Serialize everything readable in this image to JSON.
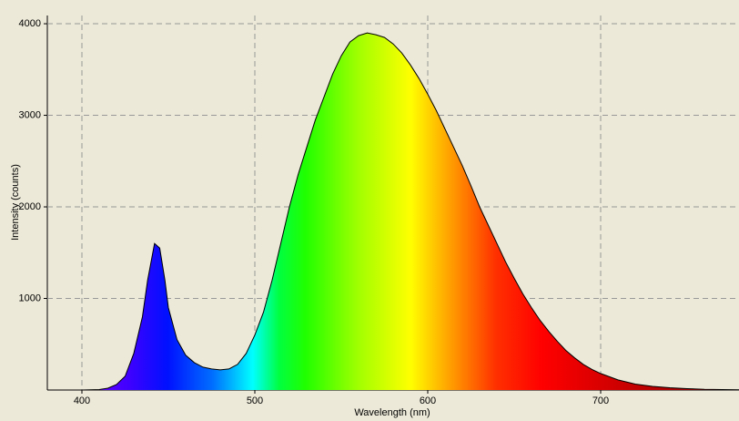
{
  "chart_data": {
    "type": "area",
    "x_label": "Wavelength (nm)",
    "y_label": "Intensity (counts)",
    "x": [
      380,
      400,
      410,
      415,
      420,
      425,
      430,
      435,
      438,
      442,
      445,
      448,
      450,
      455,
      460,
      465,
      470,
      475,
      480,
      485,
      490,
      495,
      500,
      505,
      510,
      515,
      520,
      525,
      530,
      535,
      540,
      545,
      550,
      555,
      560,
      565,
      570,
      575,
      580,
      585,
      590,
      595,
      600,
      605,
      610,
      615,
      620,
      625,
      630,
      635,
      640,
      645,
      650,
      655,
      660,
      665,
      670,
      675,
      680,
      685,
      690,
      695,
      700,
      710,
      720,
      730,
      740,
      750,
      760,
      780
    ],
    "values": [
      0,
      0,
      5,
      20,
      60,
      150,
      400,
      800,
      1200,
      1600,
      1550,
      1200,
      900,
      550,
      380,
      300,
      250,
      230,
      220,
      230,
      280,
      400,
      600,
      850,
      1200,
      1600,
      2000,
      2350,
      2650,
      2950,
      3200,
      3450,
      3650,
      3800,
      3870,
      3900,
      3880,
      3850,
      3780,
      3680,
      3550,
      3400,
      3230,
      3050,
      2850,
      2650,
      2450,
      2230,
      2000,
      1800,
      1600,
      1400,
      1220,
      1050,
      900,
      760,
      640,
      530,
      430,
      350,
      280,
      225,
      180,
      110,
      65,
      40,
      25,
      15,
      8,
      3
    ],
    "xlim": [
      380,
      780
    ],
    "ylim": [
      0,
      4090
    ],
    "xticks": [
      400,
      500,
      600,
      700
    ],
    "yticks": [
      1000,
      2000,
      3000,
      4000
    ],
    "grid": true
  }
}
